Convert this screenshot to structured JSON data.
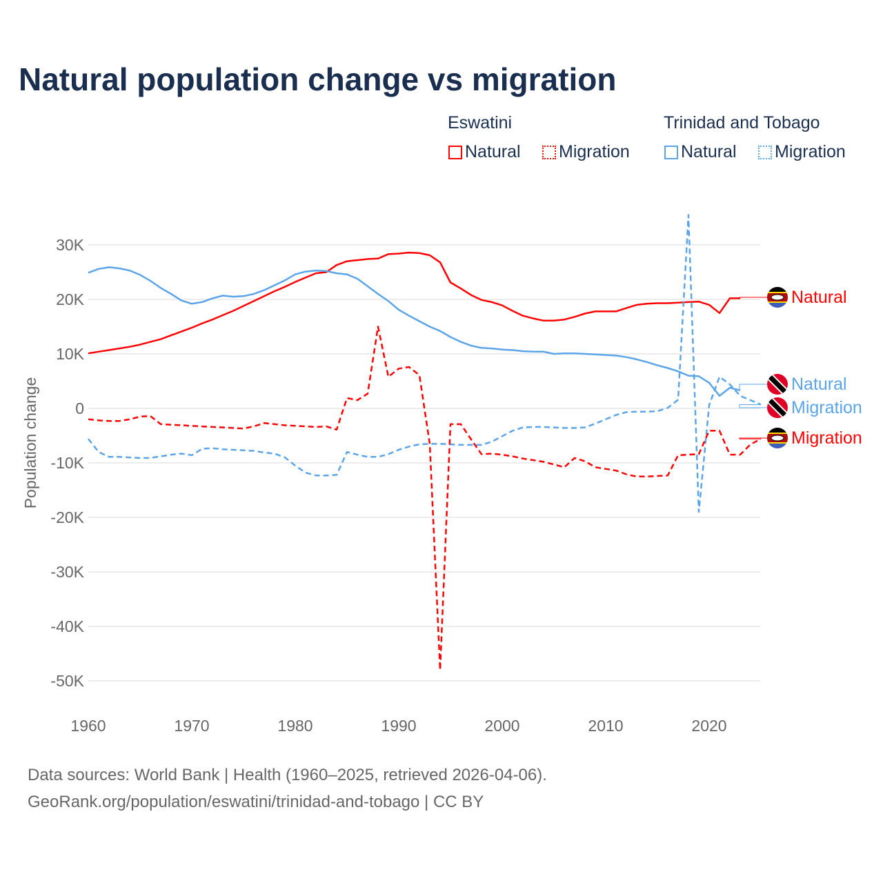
{
  "title": "Natural population change vs migration",
  "legend": {
    "groups": [
      {
        "name": "Eswatini",
        "items": [
          "Natural",
          "Migration"
        ]
      },
      {
        "name": "Trinidad and Tobago",
        "items": [
          "Natural",
          "Migration"
        ]
      }
    ]
  },
  "colors": {
    "eswatini": "#ff0000",
    "tt": "#5ba4e8"
  },
  "source_line1": "Data sources: World Bank | Health (1960–2025, retrieved 2026-04-06).",
  "source_line2": "GeoRank.org/population/eswatini/trinidad-and-tobago | CC BY",
  "chart_data": {
    "type": "line",
    "title": "Natural population change vs migration",
    "xlabel": "",
    "ylabel": "Population change",
    "xlim": [
      1960,
      2025
    ],
    "ylim": [
      -50000,
      35000
    ],
    "x_ticks": [
      1960,
      1970,
      1980,
      1990,
      2000,
      2010,
      2020
    ],
    "x_tick_labels": [
      "1960",
      "1970",
      "1980",
      "1990",
      "2000",
      "2010",
      "2020"
    ],
    "y_ticks": [
      30000,
      20000,
      10000,
      0,
      -10000,
      -20000,
      -30000,
      -40000,
      -50000
    ],
    "y_tick_labels": [
      "30K",
      "20K",
      "10K",
      "0",
      "-10K",
      "-20K",
      "-30K",
      "-40K",
      "-50K"
    ],
    "grid": true,
    "series": [
      {
        "name": "Eswatini Natural",
        "label": "Natural",
        "country": "Eswatini",
        "color": "#ff0000",
        "dash": false,
        "start": 1960,
        "values": [
          10100,
          10400,
          10700,
          11000,
          11300,
          11700,
          12200,
          12700,
          13400,
          14100,
          14800,
          15600,
          16300,
          17100,
          17900,
          18800,
          19700,
          20600,
          21500,
          22300,
          23200,
          24000,
          24800,
          25000,
          26300,
          27000,
          27200,
          27400,
          27500,
          28300,
          28400,
          28600,
          28500,
          28100,
          26800,
          23100,
          22000,
          20800,
          19900,
          19500,
          18900,
          17900,
          17000,
          16500,
          16100,
          16100,
          16300,
          16800,
          17400,
          17800,
          17800,
          17800,
          18400,
          19000,
          19200,
          19300,
          19300,
          19400,
          19500,
          19600,
          19000,
          17500,
          20200,
          20200
        ]
      },
      {
        "name": "Trinidad and Tobago Natural",
        "label": "Natural",
        "country": "Trinidad and Tobago",
        "color": "#5ba4e8",
        "dash": false,
        "start": 1960,
        "values": [
          24900,
          25600,
          25900,
          25700,
          25300,
          24500,
          23400,
          22100,
          21000,
          19800,
          19200,
          19500,
          20200,
          20700,
          20500,
          20600,
          21000,
          21700,
          22600,
          23500,
          24600,
          25100,
          25300,
          25200,
          24800,
          24600,
          23800,
          22400,
          21000,
          19700,
          18100,
          17000,
          16000,
          15000,
          14200,
          13100,
          12200,
          11500,
          11100,
          11000,
          10800,
          10700,
          10500,
          10400,
          10400,
          10000,
          10100,
          10100,
          10000,
          9900,
          9800,
          9700,
          9400,
          9000,
          8500,
          7900,
          7400,
          6800,
          6000,
          5900,
          4700,
          2300,
          3800,
          3300
        ]
      },
      {
        "name": "Trinidad and Tobago Migration",
        "label": "Migration",
        "country": "Trinidad and Tobago",
        "color": "#5ba4e8",
        "dash": true,
        "start": 1960,
        "values": [
          -5600,
          -8000,
          -8900,
          -8900,
          -9000,
          -9100,
          -9100,
          -8800,
          -8500,
          -8300,
          -8600,
          -7400,
          -7300,
          -7500,
          -7600,
          -7700,
          -7800,
          -8100,
          -8300,
          -9000,
          -10500,
          -11800,
          -12300,
          -12300,
          -12200,
          -8000,
          -8500,
          -8900,
          -8900,
          -8400,
          -7600,
          -7000,
          -6600,
          -6500,
          -6500,
          -6600,
          -6700,
          -6700,
          -6700,
          -6100,
          -5100,
          -4100,
          -3500,
          -3400,
          -3400,
          -3500,
          -3600,
          -3600,
          -3500,
          -2800,
          -2000,
          -1200,
          -700,
          -600,
          -600,
          -500,
          100,
          1600,
          35500,
          -19000,
          600,
          5800,
          4400,
          2300,
          1500,
          700
        ]
      },
      {
        "name": "Eswatini Migration",
        "label": "Migration",
        "country": "Eswatini",
        "color": "#ff0000",
        "dash": true,
        "start": 1960,
        "values": [
          -2000,
          -2200,
          -2300,
          -2300,
          -2000,
          -1500,
          -1400,
          -2900,
          -3000,
          -3100,
          -3200,
          -3300,
          -3400,
          -3500,
          -3600,
          -3700,
          -3300,
          -2700,
          -2900,
          -3100,
          -3200,
          -3300,
          -3400,
          -3300,
          -3900,
          1900,
          1500,
          2700,
          15000,
          5800,
          7300,
          7600,
          6100,
          -6500,
          -48000,
          -2900,
          -2900,
          -5700,
          -8400,
          -8300,
          -8500,
          -8800,
          -9200,
          -9500,
          -9800,
          -10300,
          -10800,
          -9100,
          -9700,
          -10800,
          -11100,
          -11400,
          -12100,
          -12500,
          -12500,
          -12400,
          -12300,
          -8600,
          -8500,
          -8400,
          -4100,
          -4100,
          -8500,
          -8500,
          -6600,
          -5600
        ]
      }
    ]
  }
}
